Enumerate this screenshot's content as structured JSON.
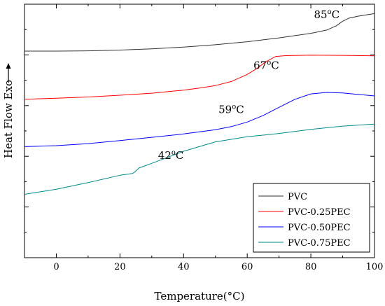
{
  "chart_data": {
    "type": "line",
    "xlabel": "Temperature(°C)",
    "ylabel": "Heat Flow Exo",
    "xlim": [
      -10,
      100
    ],
    "xticks": [
      0,
      20,
      40,
      60,
      80,
      100
    ],
    "ylim": [
      0,
      100
    ],
    "y_ticks_labeled": false,
    "legend_position": "bottom-right",
    "series": [
      {
        "name": "PVC",
        "color": "#333333",
        "x": [
          -10,
          0,
          10,
          20,
          30,
          40,
          50,
          60,
          70,
          80,
          85,
          88,
          90,
          92,
          95,
          100
        ],
        "y": [
          81.5,
          81.5,
          81.6,
          81.9,
          82.4,
          83.1,
          84.0,
          85.2,
          86.7,
          88.5,
          89.8,
          91.5,
          93.3,
          94.5,
          95.3,
          96.3
        ]
      },
      {
        "name": "PVC-0.25PEC",
        "color": "#ff0000",
        "x": [
          -10,
          0,
          10,
          20,
          30,
          40,
          45,
          50,
          55,
          60,
          63,
          66,
          69,
          72,
          80,
          90,
          100
        ],
        "y": [
          62.5,
          62.9,
          63.4,
          64.1,
          64.9,
          66.1,
          66.9,
          67.9,
          69.5,
          72.3,
          74.6,
          77.4,
          79.4,
          79.7,
          79.9,
          79.8,
          79.6
        ]
      },
      {
        "name": "PVC-0.50PEC",
        "color": "#0000ff",
        "x": [
          -10,
          0,
          10,
          20,
          30,
          40,
          50,
          55,
          60,
          65,
          70,
          75,
          80,
          85,
          90,
          95,
          100
        ],
        "y": [
          43.8,
          44.2,
          45.0,
          46.2,
          47.5,
          48.8,
          50.5,
          51.7,
          53.5,
          56.1,
          59.3,
          62.5,
          64.6,
          65.2,
          65.0,
          64.4,
          63.8
        ]
      },
      {
        "name": "PVC-0.75PEC",
        "color": "#008b8b",
        "x": [
          -10,
          0,
          10,
          20,
          24,
          25,
          26,
          30,
          40,
          50,
          60,
          70,
          80,
          90,
          100
        ],
        "y": [
          25.0,
          27.0,
          29.6,
          32.5,
          33.2,
          34.2,
          35.4,
          37.2,
          42.0,
          45.7,
          47.7,
          49.0,
          50.6,
          51.9,
          52.7
        ]
      }
    ],
    "annotations": [
      {
        "text": "85",
        "unit": "oC",
        "x": 85,
        "y": 94.5
      },
      {
        "text": "67",
        "unit": "oC",
        "x": 66,
        "y": 74.5
      },
      {
        "text": "59",
        "unit": "oC",
        "x": 55,
        "y": 57.0
      },
      {
        "text": "42",
        "unit": "oC",
        "x": 36,
        "y": 39.0
      }
    ]
  }
}
